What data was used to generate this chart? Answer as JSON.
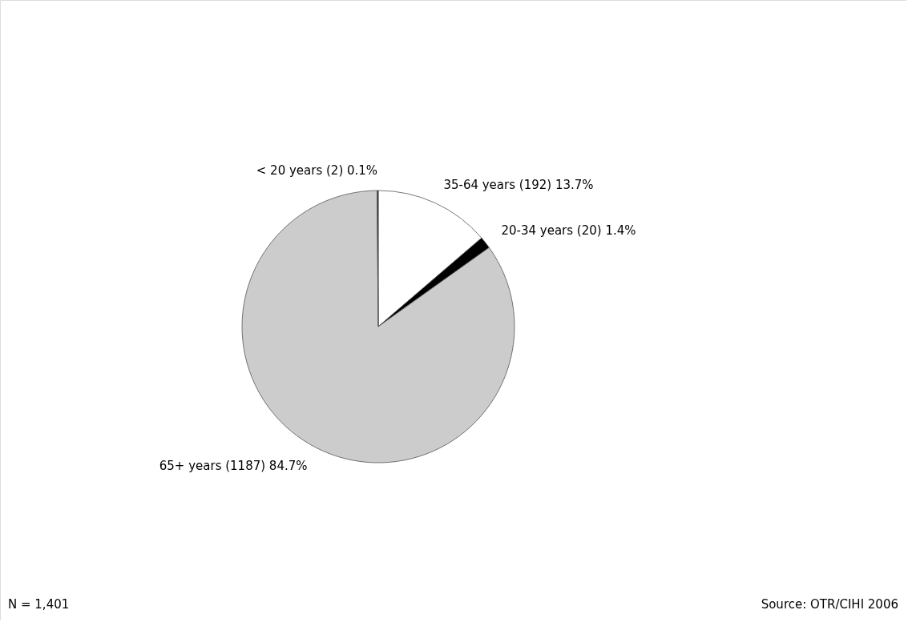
{
  "chart_data": {
    "type": "pie",
    "categories": [
      "35-64 years",
      "20-34 years",
      "65+ years",
      "< 20 years"
    ],
    "values": [
      192,
      20,
      1187,
      2
    ],
    "value_labels": [
      "(192) 13.7%",
      "(20) 1.4%",
      "(1187) 84.7%",
      "(2) 0.1%"
    ],
    "colors": [
      "#ffffff",
      "#000000",
      "#cccccc",
      "#333333"
    ],
    "annotations": [
      "N = 1,401",
      "Source: OTR/CIHI 2006"
    ]
  }
}
